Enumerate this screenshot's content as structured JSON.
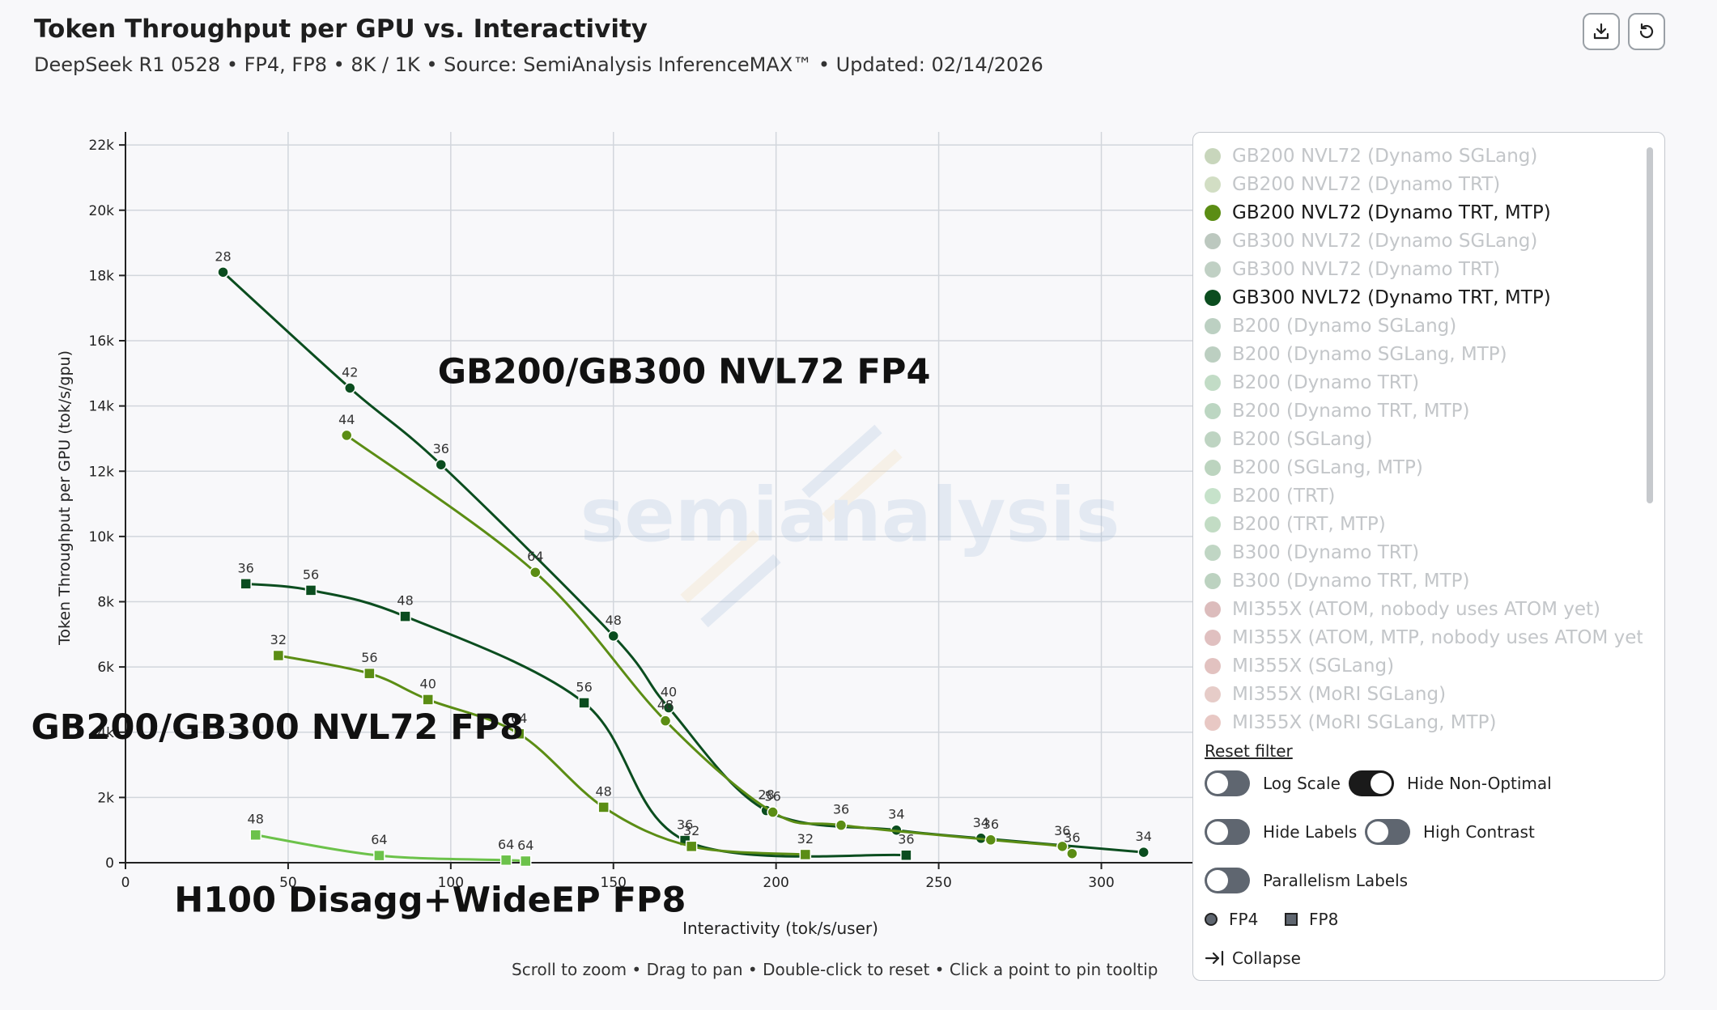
{
  "header": {
    "title": "Token Throughput per GPU vs. Interactivity",
    "subtitle": "DeepSeek R1 0528 • FP4, FP8 • 8K / 1K • Source: SemiAnalysis InferenceMAX™ • Updated: 02/14/2026"
  },
  "toolbar": {
    "download_icon": "download-icon",
    "reset_icon": "reset-icon"
  },
  "hint": "Scroll to zoom • Drag to pan • Double-click to reset • Click a point to pin tooltip",
  "watermark": "semianalysis",
  "chart_data": {
    "type": "line",
    "xlabel": "Interactivity (tok/s/user)",
    "ylabel": "Token Throughput per GPU (tok/s/gpu)",
    "xlim": [
      0,
      328
    ],
    "ylim": [
      0,
      22400
    ],
    "xticks": [
      0,
      50,
      100,
      150,
      200,
      250,
      300
    ],
    "yticks": [
      0,
      2000,
      4000,
      6000,
      8000,
      10000,
      12000,
      14000,
      16000,
      18000,
      20000,
      22000
    ],
    "ytick_labels": [
      "0",
      "2k",
      "4k",
      "6k",
      "8k",
      "10k",
      "12k",
      "14k",
      "16k",
      "18k",
      "20k",
      "22k"
    ],
    "grid": true,
    "annotations": [
      {
        "text": "GB200/GB300 NVL72 FP4",
        "x": 96,
        "y": 14700
      },
      {
        "text": "GB200/GB300 NVL72 FP8",
        "x": -29,
        "y": 3800
      },
      {
        "text": "H100 Disagg+WideEP FP8",
        "x": 15,
        "y": -1500
      }
    ],
    "series": [
      {
        "name": "GB300 NVL72 (Dynamo TRT, MTP)",
        "precision": "FP4",
        "marker": "circle",
        "color": "#0b4d1f",
        "points": [
          {
            "x": 30,
            "y": 18100,
            "label": "28"
          },
          {
            "x": 69,
            "y": 14550,
            "label": "42"
          },
          {
            "x": 97,
            "y": 12200,
            "label": "36"
          },
          {
            "x": 150,
            "y": 6950,
            "label": "48"
          },
          {
            "x": 167,
            "y": 4750,
            "label": "40"
          },
          {
            "x": 197,
            "y": 1600,
            "label": "28"
          },
          {
            "x": 237,
            "y": 1000,
            "label": "34"
          },
          {
            "x": 263,
            "y": 750,
            "label": "34"
          },
          {
            "x": 313,
            "y": 320,
            "label": "34"
          }
        ]
      },
      {
        "name": "GB200 NVL72 (Dynamo TRT, MTP)",
        "precision": "FP4",
        "marker": "circle",
        "color": "#5b8d14",
        "points": [
          {
            "x": 68,
            "y": 13100,
            "label": "44"
          },
          {
            "x": 126,
            "y": 8900,
            "label": "64"
          },
          {
            "x": 166,
            "y": 4350,
            "label": "48"
          },
          {
            "x": 199,
            "y": 1550,
            "label": "56"
          },
          {
            "x": 220,
            "y": 1150,
            "label": "36"
          },
          {
            "x": 266,
            "y": 700,
            "label": "36"
          },
          {
            "x": 288,
            "y": 500,
            "label": "36"
          },
          {
            "x": 291,
            "y": 280,
            "label": "36"
          }
        ]
      },
      {
        "name": "GB300 NVL72 (Dynamo TRT, MTP)",
        "precision": "FP8",
        "marker": "square",
        "color": "#0b4d1f",
        "points": [
          {
            "x": 37,
            "y": 8550,
            "label": "36"
          },
          {
            "x": 57,
            "y": 8350,
            "label": "56"
          },
          {
            "x": 86,
            "y": 7550,
            "label": "48"
          },
          {
            "x": 141,
            "y": 4900,
            "label": "56"
          },
          {
            "x": 172,
            "y": 680,
            "label": "36"
          },
          {
            "x": 240,
            "y": 230,
            "label": "36"
          }
        ]
      },
      {
        "name": "GB200 NVL72 (Dynamo TRT, MTP)",
        "precision": "FP8",
        "marker": "square",
        "color": "#5b8d14",
        "points": [
          {
            "x": 47,
            "y": 6350,
            "label": "32"
          },
          {
            "x": 75,
            "y": 5800,
            "label": "56"
          },
          {
            "x": 93,
            "y": 5000,
            "label": "40"
          },
          {
            "x": 121,
            "y": 3950,
            "label": "64"
          },
          {
            "x": 147,
            "y": 1700,
            "label": "48"
          },
          {
            "x": 174,
            "y": 500,
            "label": "32"
          },
          {
            "x": 209,
            "y": 250,
            "label": "32"
          }
        ]
      },
      {
        "name": "H100 Disagg+WideEP",
        "precision": "FP8",
        "marker": "square",
        "color": "#6cc24a",
        "points": [
          {
            "x": 40,
            "y": 850,
            "label": "48"
          },
          {
            "x": 78,
            "y": 220,
            "label": "64"
          },
          {
            "x": 117,
            "y": 80,
            "label": "64"
          },
          {
            "x": 123,
            "y": 50,
            "label": "64"
          }
        ]
      }
    ]
  },
  "legend": {
    "items": [
      {
        "label": "GB200 NVL72 (Dynamo SGLang)",
        "color": "#c8d6bc",
        "active": false
      },
      {
        "label": "GB200 NVL72 (Dynamo TRT)",
        "color": "#d2dec4",
        "active": false
      },
      {
        "label": "GB200 NVL72 (Dynamo TRT, MTP)",
        "color": "#5b8d14",
        "active": true
      },
      {
        "label": "GB300 NVL72 (Dynamo SGLang)",
        "color": "#bcc8bf",
        "active": false
      },
      {
        "label": "GB300 NVL72 (Dynamo TRT)",
        "color": "#c0d0c4",
        "active": false
      },
      {
        "label": "GB300 NVL72 (Dynamo TRT, MTP)",
        "color": "#0b4d1f",
        "active": true
      },
      {
        "label": "B200 (Dynamo SGLang)",
        "color": "#bcd0c2",
        "active": false
      },
      {
        "label": "B200 (Dynamo SGLang, MTP)",
        "color": "#bccfc1",
        "active": false
      },
      {
        "label": "B200 (Dynamo TRT)",
        "color": "#c2dcc6",
        "active": false
      },
      {
        "label": "B200 (Dynamo TRT, MTP)",
        "color": "#bcd6c2",
        "active": false
      },
      {
        "label": "B200 (SGLang)",
        "color": "#bed4c2",
        "active": false
      },
      {
        "label": "B200 (SGLang, MTP)",
        "color": "#bcd4bf",
        "active": false
      },
      {
        "label": "B200 (TRT)",
        "color": "#c6e2ca",
        "active": false
      },
      {
        "label": "B200 (TRT, MTP)",
        "color": "#c2dcc4",
        "active": false
      },
      {
        "label": "B300 (Dynamo TRT)",
        "color": "#c0d6c4",
        "active": false
      },
      {
        "label": "B300 (Dynamo TRT, MTP)",
        "color": "#bcd2c0",
        "active": false
      },
      {
        "label": "MI355X (ATOM, nobody uses ATOM yet)",
        "color": "#dcbcbc",
        "active": false
      },
      {
        "label": "MI355X (ATOM, MTP, nobody uses ATOM yet)",
        "color": "#e0c0c0",
        "active": false
      },
      {
        "label": "MI355X (SGLang)",
        "color": "#e2c2c0",
        "active": false
      },
      {
        "label": "MI355X (MoRI SGLang)",
        "color": "#e6ccc8",
        "active": false
      },
      {
        "label": "MI355X (MoRI SGLang, MTP)",
        "color": "#e8c8c4",
        "active": false
      }
    ],
    "reset_label": "Reset filter",
    "toggles": [
      {
        "label": "Log Scale",
        "on": false
      },
      {
        "label": "Hide Non-Optimal",
        "on": true
      },
      {
        "label": "Hide Labels",
        "on": false
      },
      {
        "label": "High Contrast",
        "on": false
      },
      {
        "label": "Parallelism Labels",
        "on": false
      }
    ],
    "shape_keys": {
      "fp4": "FP4",
      "fp8": "FP8"
    },
    "collapse_label": "Collapse"
  }
}
